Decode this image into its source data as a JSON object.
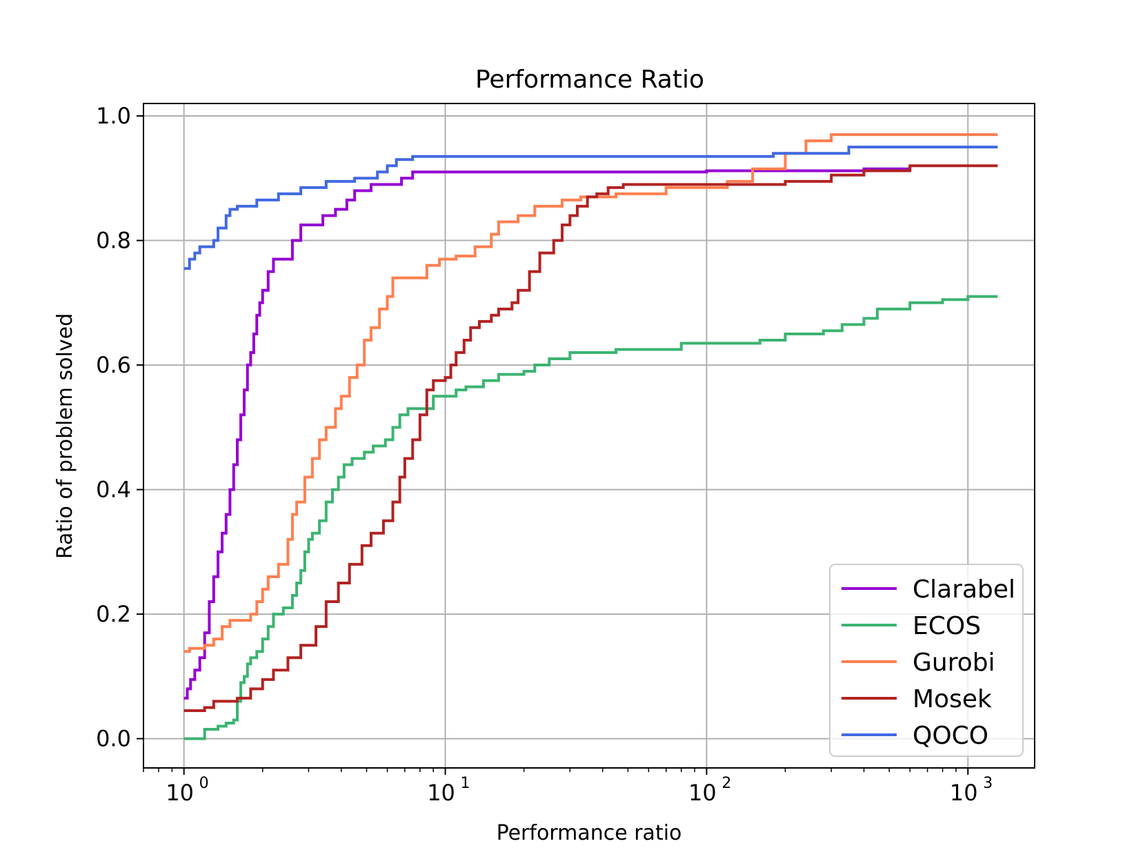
{
  "chart_data": {
    "type": "line",
    "title": "Performance Ratio",
    "xlabel": "Performance ratio",
    "ylabel": "Ratio of problem solved",
    "xscale": "log",
    "xlim": [
      0.7,
      1800
    ],
    "ylim": [
      -0.047,
      1.02
    ],
    "grid": true,
    "legend_position": "lower-right",
    "x_ticks": [
      {
        "value": 1,
        "base": "10",
        "exp": "0"
      },
      {
        "value": 10,
        "base": "10",
        "exp": "1"
      },
      {
        "value": 100,
        "base": "10",
        "exp": "2"
      },
      {
        "value": 1000,
        "base": "10",
        "exp": "3"
      }
    ],
    "y_ticks": [
      {
        "value": 0.0,
        "label": "0.0"
      },
      {
        "value": 0.2,
        "label": "0.2"
      },
      {
        "value": 0.4,
        "label": "0.4"
      },
      {
        "value": 0.6,
        "label": "0.6"
      },
      {
        "value": 0.8,
        "label": "0.8"
      },
      {
        "value": 1.0,
        "label": "1.0"
      }
    ],
    "series": [
      {
        "name": "Clarabel",
        "color": "#9400d3",
        "points": [
          [
            1.0,
            0.065
          ],
          [
            1.03,
            0.08
          ],
          [
            1.06,
            0.095
          ],
          [
            1.1,
            0.11
          ],
          [
            1.15,
            0.13
          ],
          [
            1.2,
            0.17
          ],
          [
            1.25,
            0.22
          ],
          [
            1.3,
            0.26
          ],
          [
            1.35,
            0.3
          ],
          [
            1.4,
            0.33
          ],
          [
            1.45,
            0.36
          ],
          [
            1.5,
            0.4
          ],
          [
            1.55,
            0.44
          ],
          [
            1.6,
            0.48
          ],
          [
            1.65,
            0.52
          ],
          [
            1.7,
            0.56
          ],
          [
            1.75,
            0.6
          ],
          [
            1.8,
            0.62
          ],
          [
            1.85,
            0.65
          ],
          [
            1.9,
            0.68
          ],
          [
            1.95,
            0.7
          ],
          [
            2.0,
            0.72
          ],
          [
            2.1,
            0.75
          ],
          [
            2.2,
            0.77
          ],
          [
            2.4,
            0.77
          ],
          [
            2.6,
            0.8
          ],
          [
            2.8,
            0.825
          ],
          [
            3.0,
            0.825
          ],
          [
            3.4,
            0.84
          ],
          [
            3.8,
            0.85
          ],
          [
            4.2,
            0.865
          ],
          [
            4.5,
            0.88
          ],
          [
            5.2,
            0.89
          ],
          [
            6.0,
            0.89
          ],
          [
            6.8,
            0.9
          ],
          [
            7.5,
            0.91
          ],
          [
            100,
            0.912
          ],
          [
            400,
            0.915
          ],
          [
            600,
            0.92
          ]
        ]
      },
      {
        "name": "ECOS",
        "color": "#3cb371",
        "points": [
          [
            1.0,
            0.0
          ],
          [
            1.15,
            0.0
          ],
          [
            1.2,
            0.015
          ],
          [
            1.35,
            0.02
          ],
          [
            1.45,
            0.025
          ],
          [
            1.55,
            0.03
          ],
          [
            1.6,
            0.06
          ],
          [
            1.65,
            0.09
          ],
          [
            1.7,
            0.1
          ],
          [
            1.75,
            0.12
          ],
          [
            1.8,
            0.13
          ],
          [
            1.9,
            0.14
          ],
          [
            2.0,
            0.16
          ],
          [
            2.1,
            0.18
          ],
          [
            2.2,
            0.2
          ],
          [
            2.4,
            0.21
          ],
          [
            2.6,
            0.23
          ],
          [
            2.7,
            0.25
          ],
          [
            2.8,
            0.27
          ],
          [
            2.9,
            0.3
          ],
          [
            3.0,
            0.32
          ],
          [
            3.1,
            0.33
          ],
          [
            3.3,
            0.35
          ],
          [
            3.5,
            0.38
          ],
          [
            3.7,
            0.4
          ],
          [
            3.9,
            0.42
          ],
          [
            4.1,
            0.44
          ],
          [
            4.4,
            0.45
          ],
          [
            4.9,
            0.46
          ],
          [
            5.3,
            0.47
          ],
          [
            5.9,
            0.48
          ],
          [
            6.3,
            0.5
          ],
          [
            6.7,
            0.52
          ],
          [
            7.2,
            0.53
          ],
          [
            8.5,
            0.53
          ],
          [
            9.0,
            0.55
          ],
          [
            11,
            0.56
          ],
          [
            12,
            0.565
          ],
          [
            14,
            0.575
          ],
          [
            16,
            0.585
          ],
          [
            20,
            0.59
          ],
          [
            22,
            0.6
          ],
          [
            25,
            0.61
          ],
          [
            30,
            0.62
          ],
          [
            45,
            0.625
          ],
          [
            80,
            0.635
          ],
          [
            160,
            0.64
          ],
          [
            200,
            0.65
          ],
          [
            280,
            0.655
          ],
          [
            330,
            0.665
          ],
          [
            400,
            0.675
          ],
          [
            450,
            0.69
          ],
          [
            600,
            0.7
          ],
          [
            800,
            0.705
          ],
          [
            1000,
            0.71
          ],
          [
            1300,
            0.71
          ]
        ]
      },
      {
        "name": "Gurobi",
        "color": "#ff7f50",
        "points": [
          [
            1.0,
            0.14
          ],
          [
            1.05,
            0.145
          ],
          [
            1.2,
            0.15
          ],
          [
            1.3,
            0.16
          ],
          [
            1.4,
            0.18
          ],
          [
            1.5,
            0.19
          ],
          [
            1.8,
            0.2
          ],
          [
            1.9,
            0.22
          ],
          [
            2.0,
            0.24
          ],
          [
            2.1,
            0.26
          ],
          [
            2.3,
            0.28
          ],
          [
            2.5,
            0.32
          ],
          [
            2.6,
            0.36
          ],
          [
            2.7,
            0.38
          ],
          [
            2.9,
            0.42
          ],
          [
            3.1,
            0.45
          ],
          [
            3.3,
            0.48
          ],
          [
            3.5,
            0.5
          ],
          [
            3.8,
            0.53
          ],
          [
            4.0,
            0.55
          ],
          [
            4.3,
            0.58
          ],
          [
            4.6,
            0.6
          ],
          [
            4.9,
            0.64
          ],
          [
            5.2,
            0.66
          ],
          [
            5.6,
            0.69
          ],
          [
            6.0,
            0.71
          ],
          [
            6.3,
            0.74
          ],
          [
            7.5,
            0.74
          ],
          [
            8.5,
            0.76
          ],
          [
            9.5,
            0.77
          ],
          [
            11,
            0.775
          ],
          [
            13,
            0.79
          ],
          [
            15,
            0.81
          ],
          [
            16,
            0.83
          ],
          [
            19,
            0.84
          ],
          [
            22,
            0.855
          ],
          [
            28,
            0.865
          ],
          [
            33,
            0.87
          ],
          [
            45,
            0.875
          ],
          [
            70,
            0.885
          ],
          [
            120,
            0.895
          ],
          [
            150,
            0.915
          ],
          [
            200,
            0.94
          ],
          [
            240,
            0.96
          ],
          [
            300,
            0.97
          ],
          [
            1300,
            0.97
          ]
        ]
      },
      {
        "name": "Mosek",
        "color": "#b22222",
        "points": [
          [
            1.0,
            0.045
          ],
          [
            1.2,
            0.05
          ],
          [
            1.3,
            0.06
          ],
          [
            1.6,
            0.065
          ],
          [
            1.8,
            0.08
          ],
          [
            2.0,
            0.095
          ],
          [
            2.2,
            0.11
          ],
          [
            2.5,
            0.13
          ],
          [
            2.8,
            0.15
          ],
          [
            3.2,
            0.18
          ],
          [
            3.5,
            0.22
          ],
          [
            3.9,
            0.25
          ],
          [
            4.3,
            0.28
          ],
          [
            4.8,
            0.31
          ],
          [
            5.2,
            0.33
          ],
          [
            5.8,
            0.35
          ],
          [
            6.3,
            0.38
          ],
          [
            6.7,
            0.42
          ],
          [
            7.0,
            0.45
          ],
          [
            7.5,
            0.48
          ],
          [
            8.0,
            0.52
          ],
          [
            8.5,
            0.56
          ],
          [
            9.0,
            0.575
          ],
          [
            10,
            0.58
          ],
          [
            10.5,
            0.6
          ],
          [
            11,
            0.62
          ],
          [
            11.8,
            0.64
          ],
          [
            12.5,
            0.66
          ],
          [
            13.5,
            0.67
          ],
          [
            15,
            0.68
          ],
          [
            16,
            0.69
          ],
          [
            18,
            0.7
          ],
          [
            19,
            0.72
          ],
          [
            21,
            0.75
          ],
          [
            23,
            0.78
          ],
          [
            26,
            0.8
          ],
          [
            28,
            0.825
          ],
          [
            30,
            0.84
          ],
          [
            32,
            0.855
          ],
          [
            35,
            0.87
          ],
          [
            38,
            0.875
          ],
          [
            42,
            0.885
          ],
          [
            48,
            0.89
          ],
          [
            200,
            0.895
          ],
          [
            300,
            0.905
          ],
          [
            400,
            0.912
          ],
          [
            600,
            0.92
          ],
          [
            1300,
            0.92
          ]
        ]
      },
      {
        "name": "QOCO",
        "color": "#4169e1",
        "points": [
          [
            1.0,
            0.755
          ],
          [
            1.05,
            0.77
          ],
          [
            1.1,
            0.78
          ],
          [
            1.15,
            0.79
          ],
          [
            1.3,
            0.8
          ],
          [
            1.35,
            0.82
          ],
          [
            1.45,
            0.84
          ],
          [
            1.5,
            0.85
          ],
          [
            1.6,
            0.855
          ],
          [
            1.9,
            0.865
          ],
          [
            2.3,
            0.875
          ],
          [
            2.8,
            0.885
          ],
          [
            3.5,
            0.895
          ],
          [
            4.5,
            0.9
          ],
          [
            5.5,
            0.91
          ],
          [
            6.0,
            0.92
          ],
          [
            6.5,
            0.93
          ],
          [
            7.5,
            0.935
          ],
          [
            180,
            0.94
          ],
          [
            350,
            0.95
          ],
          [
            1300,
            0.95
          ]
        ]
      }
    ]
  }
}
